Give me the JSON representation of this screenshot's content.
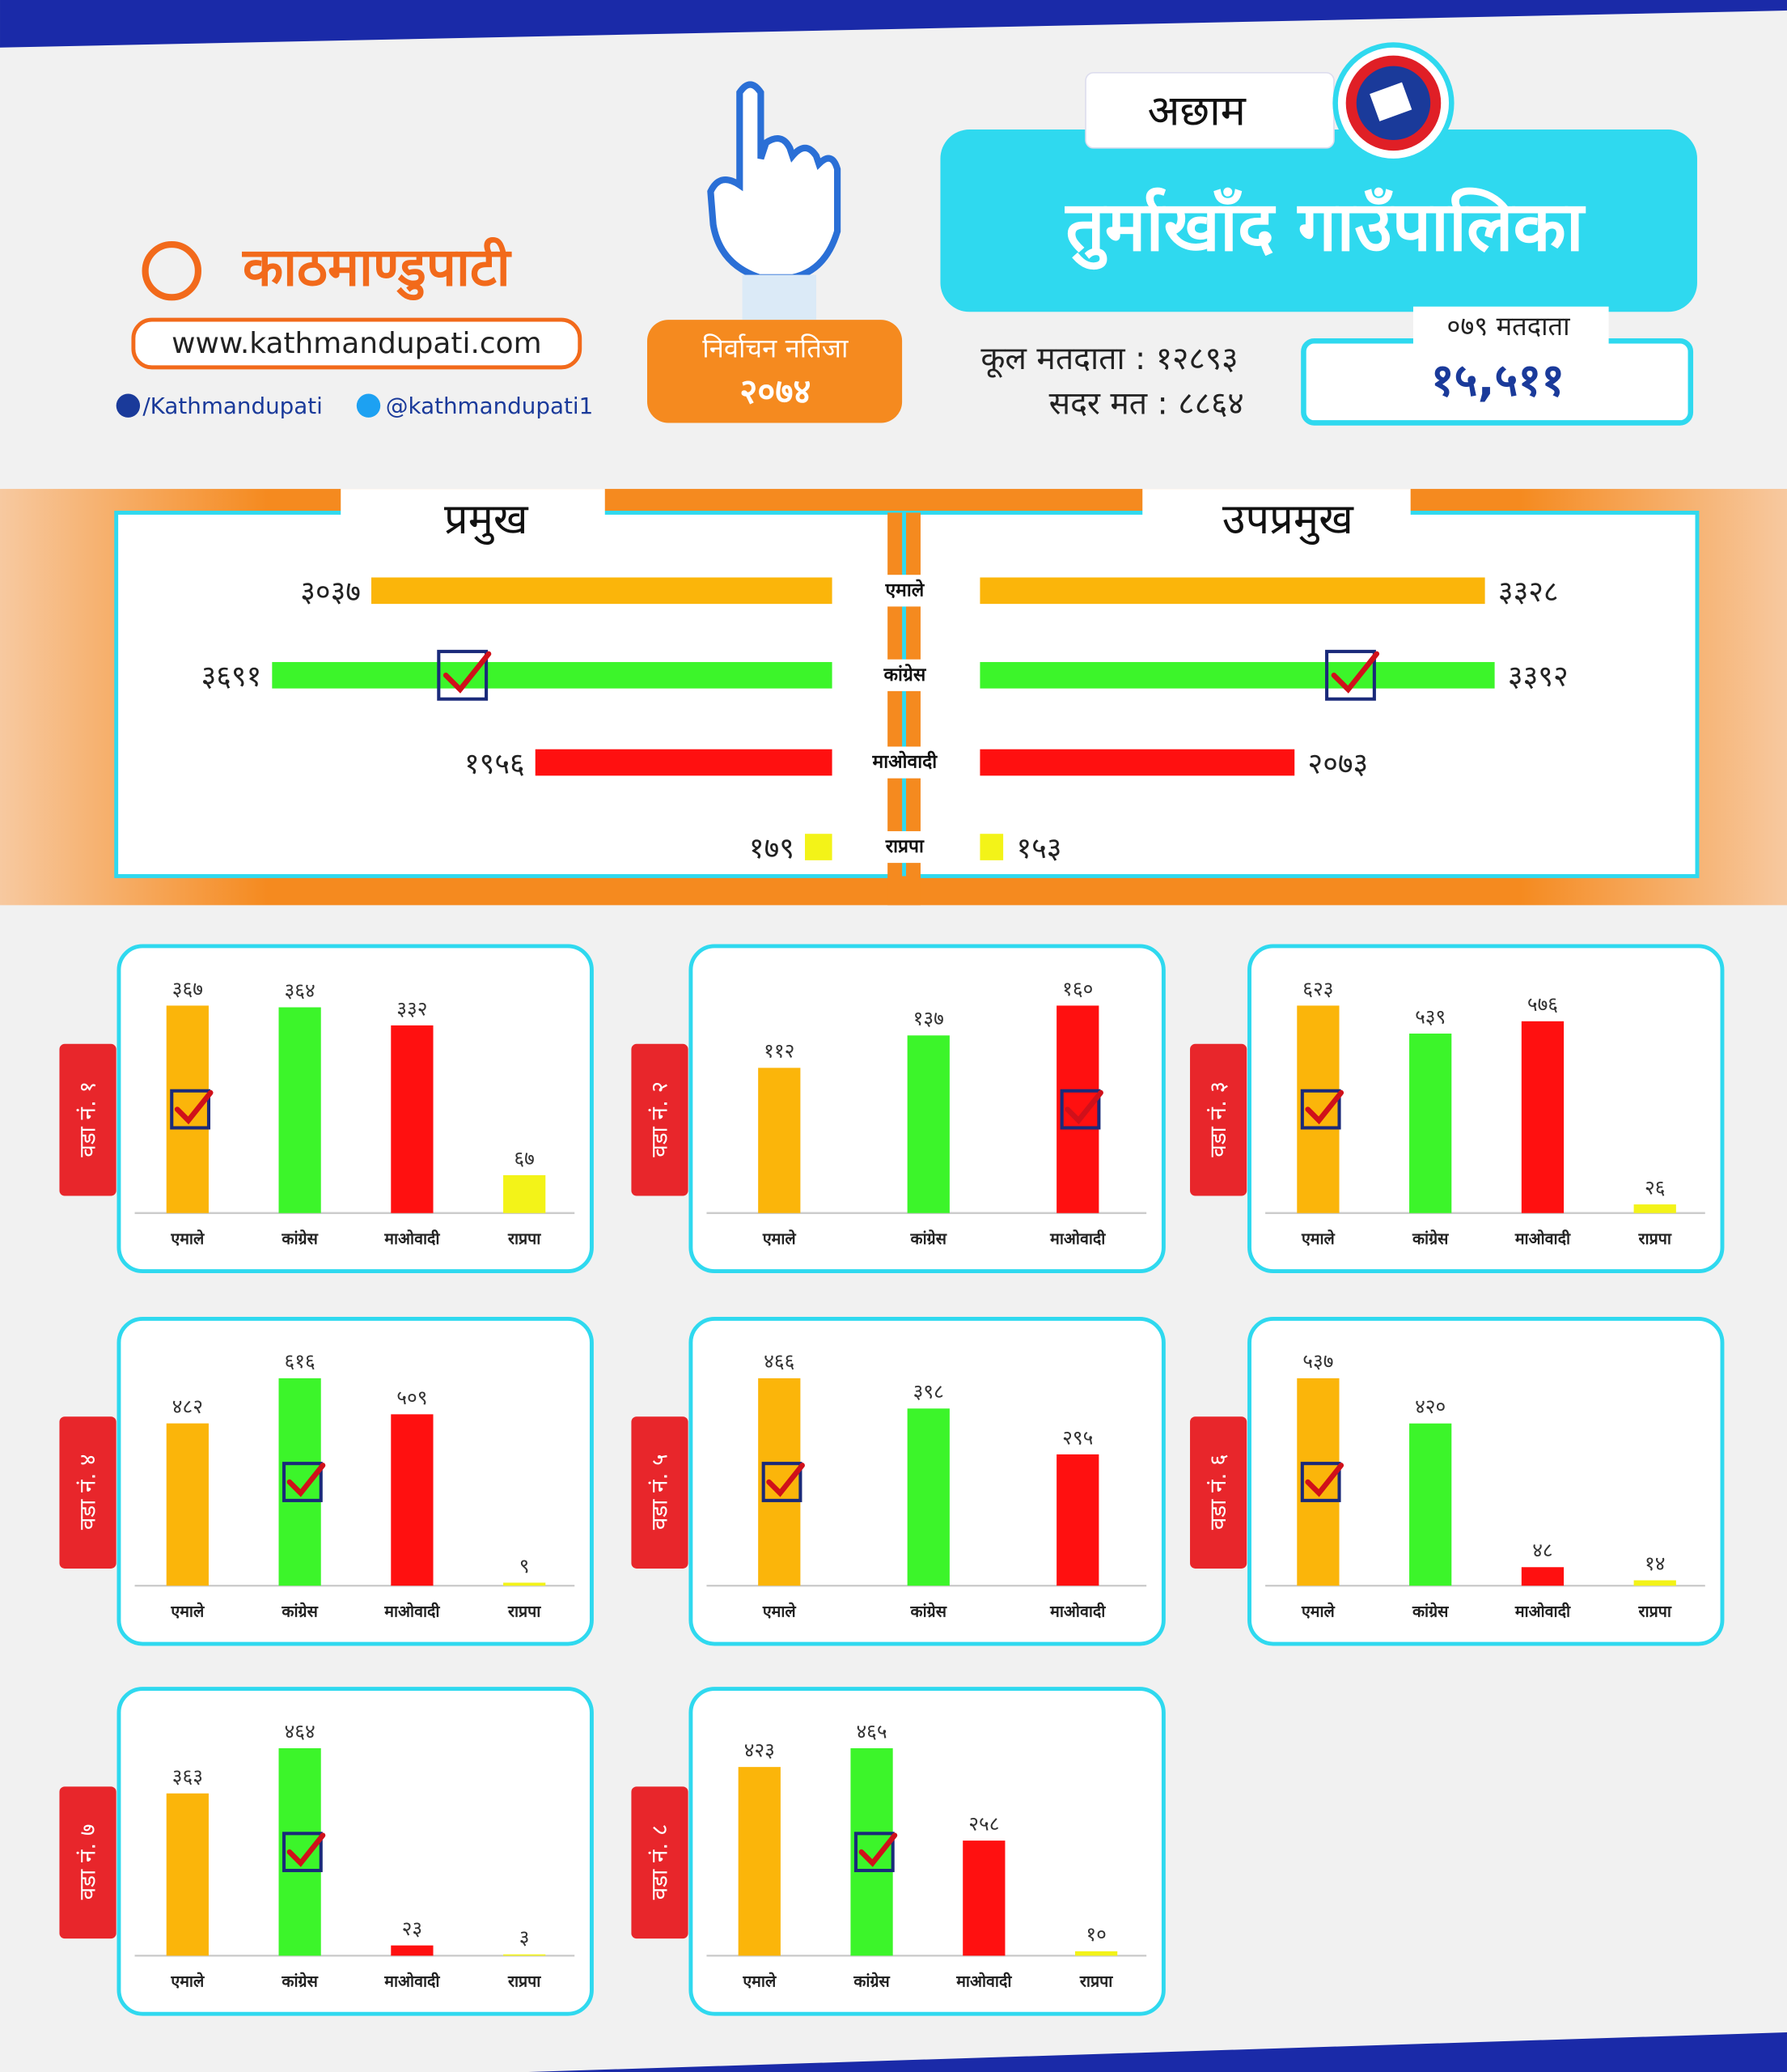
{
  "header": {
    "district": "अछाम",
    "municipality": "तुर्माखाँद गाउँपालिका",
    "brand": "काठमाण्डुपाटी",
    "website": "www.kathmandupati.com",
    "facebook": "/Kathmandupati",
    "twitter": "@kathmandupati1",
    "badge_title": "निर्वाचन नतिजा",
    "badge_year": "२०७४",
    "total_voters": "कूल मतदाता : १२८९३",
    "valid_votes": "सदर मत : ८८६४",
    "voters_079_label": "०७९ मतदाता",
    "voters_079": "१५,५११"
  },
  "chart_data": [
    {
      "type": "hbar",
      "categories": [
        "एमाले",
        "कांग्रेस",
        "माओवादी",
        "राप्रपा"
      ],
      "colors": [
        "#fbb50a",
        "#3cf52a",
        "#ff1010",
        "#f3f318"
      ],
      "series": [
        {
          "name": "प्रमुख",
          "values": [
            3037,
            3691,
            1956,
            179
          ],
          "value_labels": [
            "३०३७",
            "३६९१",
            "१९५६",
            "१७९"
          ]
        },
        {
          "name": "उपप्रमुख",
          "values": [
            3328,
            3392,
            2073,
            153
          ],
          "value_labels": [
            "३३२८",
            "३३९२",
            "२०७३",
            "१५३"
          ]
        }
      ]
    },
    {
      "type": "bar",
      "title": "वडा नं. १",
      "categories": [
        "एमाले",
        "कांग्रेस",
        "माओवादी",
        "राप्रपा"
      ],
      "colors": [
        "#fbb50a",
        "#3cf52a",
        "#ff1010",
        "#f3f318"
      ],
      "values": [
        367,
        364,
        332,
        67
      ],
      "value_labels": [
        "३६७",
        "३६४",
        "३३२",
        "६७"
      ]
    },
    {
      "type": "bar",
      "title": "वडा नं. २",
      "categories": [
        "एमाले",
        "कांग्रेस",
        "माओवादी"
      ],
      "colors": [
        "#fbb50a",
        "#3cf52a",
        "#ff1010"
      ],
      "values": [
        112,
        137,
        160
      ],
      "value_labels": [
        "११२",
        "१३७",
        "१६०"
      ]
    },
    {
      "type": "bar",
      "title": "वडा नं. ३",
      "categories": [
        "एमाले",
        "कांग्रेस",
        "माओवादी",
        "राप्रपा"
      ],
      "colors": [
        "#fbb50a",
        "#3cf52a",
        "#ff1010",
        "#f3f318"
      ],
      "values": [
        623,
        539,
        576,
        26
      ],
      "value_labels": [
        "६२३",
        "५३९",
        "५७६",
        "२६"
      ]
    },
    {
      "type": "bar",
      "title": "वडा नं. ४",
      "categories": [
        "एमाले",
        "कांग्रेस",
        "माओवादी",
        "राप्रपा"
      ],
      "colors": [
        "#fbb50a",
        "#3cf52a",
        "#ff1010",
        "#f3f318"
      ],
      "values": [
        482,
        616,
        509,
        9
      ],
      "value_labels": [
        "४८२",
        "६१६",
        "५०९",
        "९"
      ]
    },
    {
      "type": "bar",
      "title": "वडा नं. ५",
      "categories": [
        "एमाले",
        "कांग्रेस",
        "माओवादी"
      ],
      "colors": [
        "#fbb50a",
        "#3cf52a",
        "#ff1010"
      ],
      "values": [
        466,
        398,
        295
      ],
      "value_labels": [
        "४६६",
        "३९८",
        "२९५"
      ]
    },
    {
      "type": "bar",
      "title": "वडा नं. ६",
      "categories": [
        "एमाले",
        "कांग्रेस",
        "माओवादी",
        "राप्रपा"
      ],
      "colors": [
        "#fbb50a",
        "#3cf52a",
        "#ff1010",
        "#f3f318"
      ],
      "values": [
        537,
        420,
        48,
        14
      ],
      "value_labels": [
        "५३७",
        "४२०",
        "४८",
        "१४"
      ]
    },
    {
      "type": "bar",
      "title": "वडा नं. ७",
      "categories": [
        "एमाले",
        "कांग्रेस",
        "माओवादी",
        "राप्रपा"
      ],
      "colors": [
        "#fbb50a",
        "#3cf52a",
        "#ff1010",
        "#f3f318"
      ],
      "values": [
        363,
        464,
        23,
        3
      ],
      "value_labels": [
        "३६३",
        "४६४",
        "२३",
        "३"
      ]
    },
    {
      "type": "bar",
      "title": "वडा नं. ८",
      "categories": [
        "एमाले",
        "कांग्रेस",
        "माओवादी",
        "राप्रपा"
      ],
      "colors": [
        "#fbb50a",
        "#3cf52a",
        "#ff1010",
        "#f3f318"
      ],
      "values": [
        423,
        465,
        258,
        10
      ],
      "value_labels": [
        "४२३",
        "४६५",
        "२५८",
        "१०"
      ]
    }
  ]
}
